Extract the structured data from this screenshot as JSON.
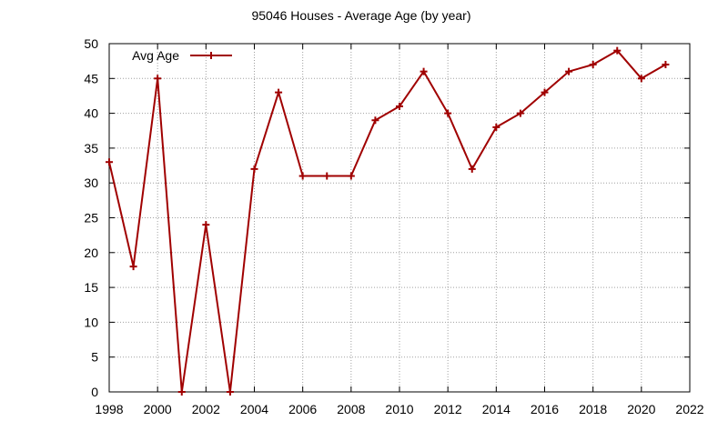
{
  "chart_data": {
    "type": "line",
    "title": "95046 Houses - Average Age (by year)",
    "xlabel": "",
    "ylabel": "",
    "xlim": [
      1998,
      2022
    ],
    "ylim": [
      0,
      50
    ],
    "x_ticks": [
      1998,
      2000,
      2002,
      2004,
      2006,
      2008,
      2010,
      2012,
      2014,
      2016,
      2018,
      2020,
      2022
    ],
    "y_ticks": [
      0,
      5,
      10,
      15,
      20,
      25,
      30,
      35,
      40,
      45,
      50
    ],
    "grid": true,
    "legend_position": "top-left",
    "series": [
      {
        "name": "Avg Age",
        "color": "#a00000",
        "marker": "plus",
        "x": [
          1998,
          1999,
          2000,
          2001,
          2002,
          2003,
          2004,
          2005,
          2006,
          2007,
          2008,
          2009,
          2010,
          2011,
          2012,
          2013,
          2014,
          2015,
          2016,
          2017,
          2018,
          2019,
          2020,
          2021
        ],
        "values": [
          33,
          18,
          45,
          0,
          24,
          0,
          32,
          43,
          31,
          31,
          31,
          39,
          41,
          46,
          40,
          32,
          38,
          40,
          43,
          46,
          47,
          49,
          45,
          47
        ]
      }
    ]
  }
}
